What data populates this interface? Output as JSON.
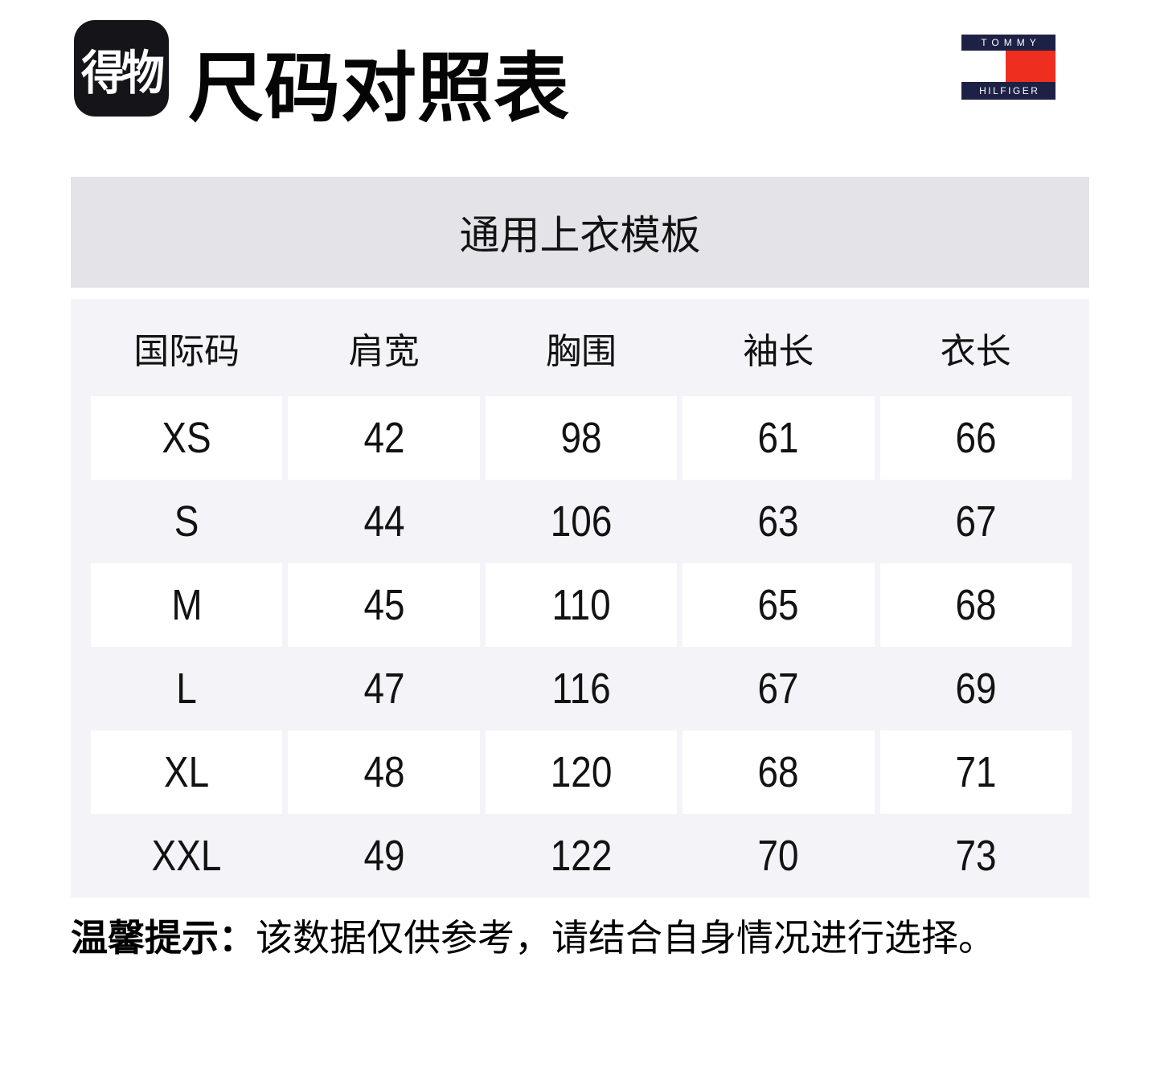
{
  "header": {
    "dewu_logo_text": "得物",
    "title": "尺码对照表"
  },
  "tommy_logo": {
    "top_text": "TOMMY",
    "bottom_text": "HILFIGER",
    "navy_color": "#1d2145",
    "red_color": "#ee2e1f"
  },
  "banner": {
    "title": "通用上衣模板",
    "background": "#e4e4e8"
  },
  "table": {
    "background": "#f4f4f8",
    "columns": [
      "国际码",
      "肩宽",
      "胸围",
      "袖长",
      "衣长"
    ],
    "rows": [
      {
        "size": "XS",
        "shoulder": "42",
        "chest": "98",
        "sleeve": "61",
        "length": "66"
      },
      {
        "size": "S",
        "shoulder": "44",
        "chest": "106",
        "sleeve": "63",
        "length": "67"
      },
      {
        "size": "M",
        "shoulder": "45",
        "chest": "110",
        "sleeve": "65",
        "length": "68"
      },
      {
        "size": "L",
        "shoulder": "47",
        "chest": "116",
        "sleeve": "67",
        "length": "69"
      },
      {
        "size": "XL",
        "shoulder": "48",
        "chest": "120",
        "sleeve": "68",
        "length": "71"
      },
      {
        "size": "XXL",
        "shoulder": "49",
        "chest": "122",
        "sleeve": "70",
        "length": "73"
      }
    ]
  },
  "tip": {
    "label": "温馨提示：",
    "text": "该数据仅供参考，请结合自身情况进行选择。"
  }
}
